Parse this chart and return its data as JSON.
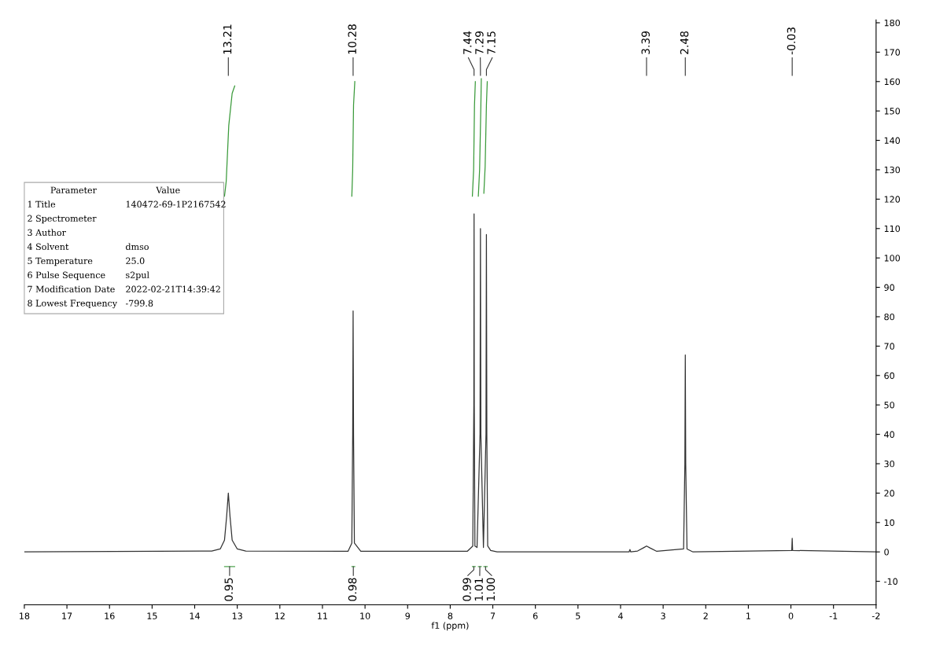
{
  "chart_data": {
    "type": "line",
    "xlabel": "f1 (ppm)",
    "xlim": [
      18,
      -2
    ],
    "xticks": [
      18,
      17,
      16,
      15,
      14,
      13,
      12,
      11,
      10,
      9,
      8,
      7,
      6,
      5,
      4,
      3,
      2,
      1,
      0,
      -1,
      -2
    ],
    "ylim": [
      -18,
      181
    ],
    "yticks": [
      -10,
      0,
      10,
      20,
      30,
      40,
      50,
      60,
      70,
      80,
      90,
      100,
      110,
      120,
      130,
      140,
      150,
      160,
      170,
      180
    ],
    "grid": false,
    "series": [
      {
        "color": "#333333",
        "x": [
          18,
          13.6,
          13.4,
          13.3,
          13.25,
          13.21,
          13.17,
          13.12,
          13.0,
          12.8,
          10.4,
          10.31,
          10.29,
          10.28,
          10.27,
          10.25,
          10.1,
          7.6,
          7.47,
          7.445,
          7.44,
          7.435,
          7.42,
          7.37,
          7.3,
          7.29,
          7.28,
          7.22,
          7.16,
          7.15,
          7.14,
          7.12,
          7.05,
          6.9,
          3.8,
          3.78,
          3.76,
          3.6,
          3.45,
          3.39,
          3.3,
          3.15,
          2.52,
          2.49,
          2.48,
          2.47,
          2.44,
          2.3,
          -0.02,
          -0.03,
          -0.04,
          -2
        ],
        "values": [
          0,
          0.3,
          1,
          4,
          12,
          20,
          12,
          4,
          1,
          0.3,
          0.2,
          3,
          40,
          82,
          40,
          3,
          0.2,
          0.2,
          2,
          50,
          115,
          50,
          2,
          1.5,
          40,
          110,
          40,
          1.5,
          40,
          108,
          40,
          2,
          0.5,
          0,
          0,
          0.8,
          0,
          0.3,
          1.5,
          2,
          1.3,
          0.2,
          1,
          30,
          67,
          30,
          1,
          0,
          0.5,
          4.6,
          0.5,
          0
        ]
      },
      {
        "color": "#3a9a3a",
        "x": [
          13.3,
          13.26,
          13.2,
          13.12,
          13.06
        ],
        "values": [
          121,
          126,
          145,
          156,
          158.5
        ]
      },
      {
        "color": "#3a9a3a",
        "x": [
          10.31,
          10.29,
          10.27,
          10.24
        ],
        "values": [
          121,
          130,
          152,
          160
        ]
      },
      {
        "color": "#3a9a3a",
        "x": [
          7.48,
          7.45,
          7.43,
          7.41
        ],
        "values": [
          121,
          130,
          152,
          160
        ]
      },
      {
        "color": "#3a9a3a",
        "x": [
          7.34,
          7.31,
          7.28,
          7.27
        ],
        "values": [
          121,
          130,
          152,
          161
        ]
      },
      {
        "color": "#3a9a3a",
        "x": [
          7.21,
          7.18,
          7.15,
          7.13
        ],
        "values": [
          122,
          131,
          152,
          160
        ]
      }
    ],
    "annotations": [
      "13.21",
      "10.28",
      "7.44",
      "7.29",
      "7.15",
      "3.39",
      "2.48",
      "-0.03",
      "0.95",
      "0.98",
      "0.99",
      "1.01",
      "1.00",
      "Parameter",
      "Value",
      "1 Title",
      "140472-69-1P2167542",
      "2 Spectrometer",
      "3 Author",
      "4 Solvent",
      "dmso",
      "5 Temperature",
      "25.0",
      "6 Pulse Sequence",
      "s2pul",
      "7 Modification Date",
      "2022-02-21T14:39:42",
      "8 Lowest Frequency",
      "-799.8"
    ]
  }
}
